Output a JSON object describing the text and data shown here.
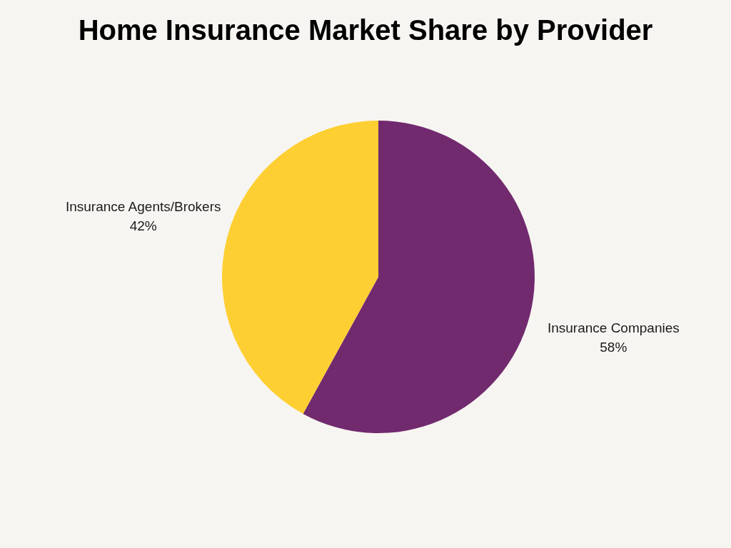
{
  "chart_data": {
    "type": "pie",
    "title": "Home Insurance Market Share by Provider",
    "categories": [
      "Insurance Companies",
      "Insurance Agents/Brokers"
    ],
    "values": [
      58,
      42
    ],
    "colors": [
      "#722a6f",
      "#fecf33"
    ],
    "value_labels": [
      "58%",
      "42%"
    ]
  }
}
